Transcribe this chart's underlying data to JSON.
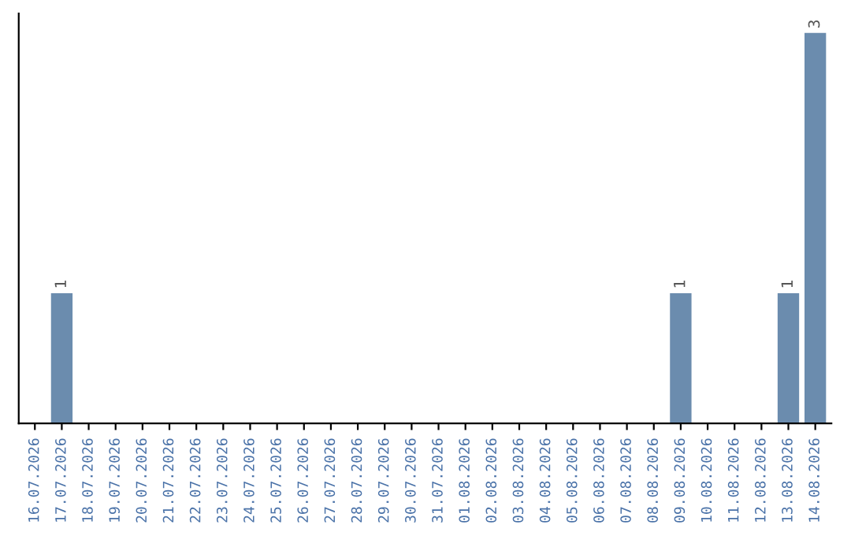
{
  "chart_data": {
    "type": "bar",
    "categories": [
      "16.07.2026",
      "17.07.2026",
      "18.07.2026",
      "19.07.2026",
      "20.07.2026",
      "21.07.2026",
      "22.07.2026",
      "23.07.2026",
      "24.07.2026",
      "25.07.2026",
      "26.07.2026",
      "27.07.2026",
      "28.07.2026",
      "29.07.2026",
      "30.07.2026",
      "31.07.2026",
      "01.08.2026",
      "02.08.2026",
      "03.08.2026",
      "04.08.2026",
      "05.08.2026",
      "06.08.2026",
      "07.08.2026",
      "08.08.2026",
      "09.08.2026",
      "10.08.2026",
      "11.08.2026",
      "12.08.2026",
      "13.08.2026",
      "14.08.2026"
    ],
    "values": [
      0,
      1,
      0,
      0,
      0,
      0,
      0,
      0,
      0,
      0,
      0,
      0,
      0,
      0,
      0,
      0,
      0,
      0,
      0,
      0,
      0,
      0,
      0,
      0,
      1,
      0,
      0,
      0,
      1,
      3
    ],
    "value_labels": [
      null,
      "1",
      null,
      null,
      null,
      null,
      null,
      null,
      null,
      null,
      null,
      null,
      null,
      null,
      null,
      null,
      null,
      null,
      null,
      null,
      null,
      null,
      null,
      null,
      "1",
      null,
      null,
      null,
      "1",
      "3"
    ],
    "color": "#6b8cae",
    "tick_labels": "x",
    "grid": false,
    "legend": false
  }
}
